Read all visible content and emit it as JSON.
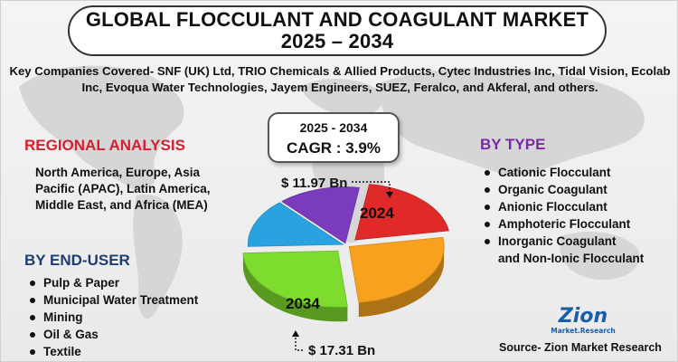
{
  "title": {
    "line1": "GLOBAL FLOCCULANT AND COAGULANT MARKET",
    "line2": "2025 – 2034"
  },
  "companies_text": "Key Companies Covered- SNF (UK) Ltd, TRIO Chemicals & Allied Products, Cytec Industries Inc, Tidal Vision, Ecolab Inc, Evoqua Water Technologies, Jayem Engineers, SUEZ, Feralco, and Akferal, and others.",
  "cagr": {
    "years": "2025 - 2034",
    "value": "CAGR : 3.9%"
  },
  "regional": {
    "title": "REGIONAL ANALYSIS",
    "text": "North America, Europe, Asia Pacific (APAC), Latin America, Middle East, and Africa (MEA)"
  },
  "end_user": {
    "title": "BY END-USER",
    "items": [
      "Pulp & Paper",
      "Municipal Water Treatment",
      "Mining",
      "Oil & Gas",
      "Textile"
    ]
  },
  "by_type": {
    "title": "BY TYPE",
    "items": [
      "Cationic Flocculant",
      "Organic Coagulant",
      "Anionic Flocculant",
      "Amphoteric Flocculant",
      "Inorganic Coagulant",
      "and Non-Ionic Flocculant"
    ]
  },
  "logo": {
    "word": "Zion",
    "sub": "Market.Research"
  },
  "source": "Source- Zion Market Research",
  "colors": {
    "regional_title": "#d42030",
    "end_user_title": "#1d3e72",
    "type_title": "#7a2aa8"
  },
  "chart_data": {
    "type": "pie",
    "title": "",
    "markers": [
      {
        "year": "2024",
        "value_label": "$ 11.97 Bn"
      },
      {
        "year": "2034",
        "value_label": "$ 17.31 Bn"
      }
    ],
    "slices": [
      {
        "color": "#e02a2a",
        "share": 20,
        "highlight": "2024"
      },
      {
        "color": "#f7a11f",
        "share": 26
      },
      {
        "color": "#7ddc2e",
        "share": 26,
        "highlight": "2034"
      },
      {
        "color": "#2aa2e0",
        "share": 14
      },
      {
        "color": "#7b3bbd",
        "share": 14
      }
    ]
  }
}
